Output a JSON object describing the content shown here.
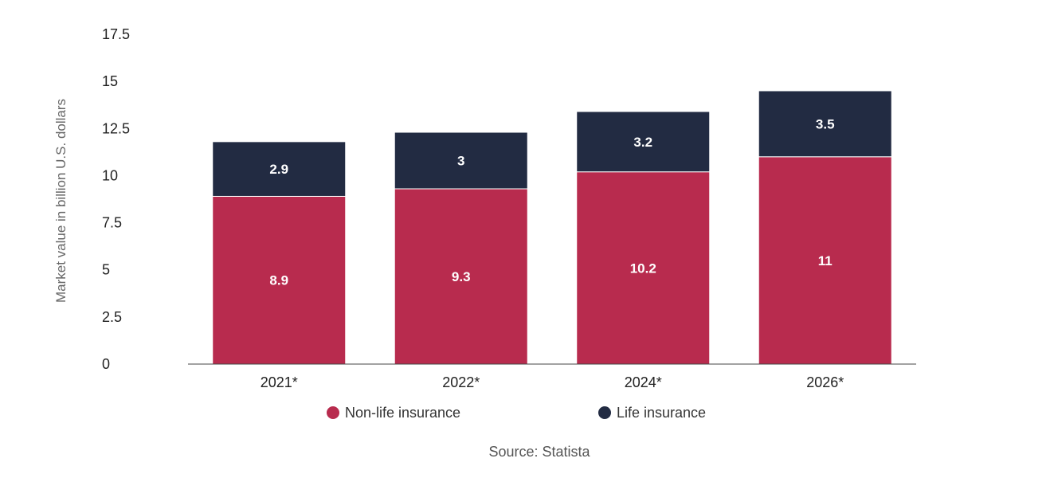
{
  "chart_data": {
    "type": "bar",
    "stacked": true,
    "categories": [
      "2021*",
      "2022*",
      "2024*",
      "2026*"
    ],
    "series": [
      {
        "name": "Non-life insurance",
        "values": [
          8.9,
          9.3,
          10.2,
          11
        ],
        "color": "#b82b4e"
      },
      {
        "name": "Life insurance",
        "values": [
          2.9,
          3,
          3.2,
          3.5
        ],
        "color": "#222b42"
      }
    ],
    "ylabel": "Market value in billion U.S. dollars",
    "xlabel": "",
    "ylim": [
      0,
      17.5
    ],
    "yticks": [
      "0",
      "2.5",
      "5",
      "7.5",
      "10",
      "12.5",
      "15",
      "17.5"
    ],
    "grid": false,
    "legend": "bottom"
  },
  "source": "Source: Statista"
}
